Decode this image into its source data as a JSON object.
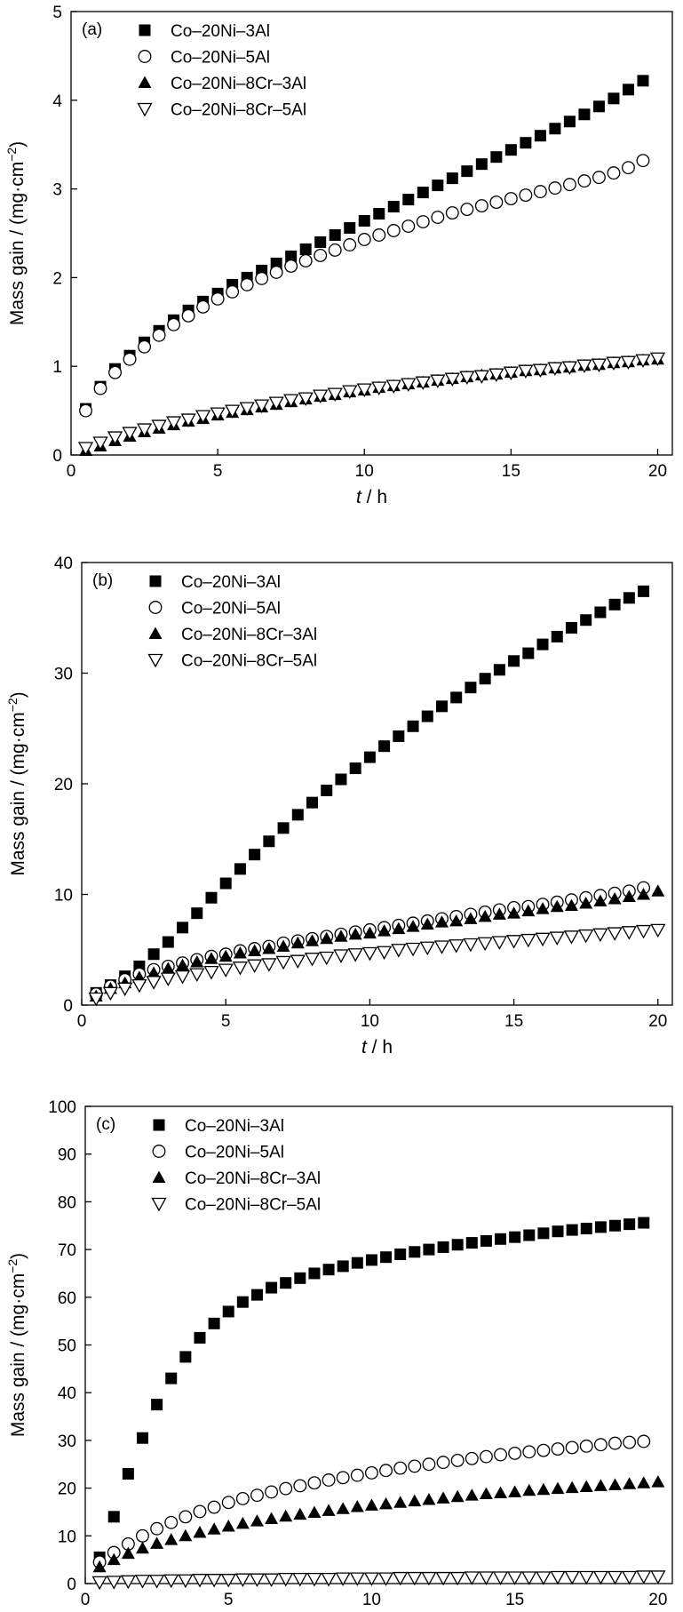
{
  "chart_data": [
    {
      "type": "scatter",
      "panel_label": "(a)",
      "xlabel_italic": "t",
      "xlabel_rest": " / h",
      "ylabel": "Mass gain / (mg·cm",
      "ylabel_sup": "−2",
      "ylabel_close": ")",
      "xlim": [
        0,
        20.5
      ],
      "ylim": [
        0,
        5
      ],
      "xticks": [
        0,
        5,
        10,
        15,
        20
      ],
      "yticks": [
        0,
        1,
        2,
        3,
        4,
        5
      ],
      "legend_position": "top-left",
      "series": [
        {
          "name": "Co–20Ni–3Al",
          "marker": "filled-square",
          "x": [
            0.5,
            1,
            1.5,
            2,
            2.5,
            3,
            3.5,
            4,
            4.5,
            5,
            5.5,
            6,
            6.5,
            7,
            7.5,
            8,
            8.5,
            9,
            9.5,
            10,
            10.5,
            11,
            11.5,
            12,
            12.5,
            13,
            13.5,
            14,
            14.5,
            15,
            15.5,
            16,
            16.5,
            17,
            17.5,
            18,
            18.5,
            19,
            19.5
          ],
          "y": [
            0.52,
            0.77,
            0.97,
            1.12,
            1.27,
            1.4,
            1.52,
            1.63,
            1.73,
            1.82,
            1.92,
            2.0,
            2.08,
            2.16,
            2.24,
            2.32,
            2.4,
            2.48,
            2.56,
            2.64,
            2.72,
            2.8,
            2.88,
            2.96,
            3.04,
            3.12,
            3.2,
            3.28,
            3.36,
            3.44,
            3.52,
            3.6,
            3.68,
            3.76,
            3.84,
            3.93,
            4.02,
            4.12,
            4.22
          ]
        },
        {
          "name": "Co–20Ni–5Al",
          "marker": "open-circle",
          "x": [
            0.5,
            1,
            1.5,
            2,
            2.5,
            3,
            3.5,
            4,
            4.5,
            5,
            5.5,
            6,
            6.5,
            7,
            7.5,
            8,
            8.5,
            9,
            9.5,
            10,
            10.5,
            11,
            11.5,
            12,
            12.5,
            13,
            13.5,
            14,
            14.5,
            15,
            15.5,
            16,
            16.5,
            17,
            17.5,
            18,
            18.5,
            19,
            19.5
          ],
          "y": [
            0.5,
            0.75,
            0.93,
            1.08,
            1.22,
            1.35,
            1.47,
            1.57,
            1.67,
            1.76,
            1.84,
            1.92,
            1.99,
            2.06,
            2.13,
            2.19,
            2.25,
            2.31,
            2.37,
            2.43,
            2.48,
            2.53,
            2.58,
            2.63,
            2.68,
            2.73,
            2.77,
            2.81,
            2.85,
            2.89,
            2.93,
            2.97,
            3.01,
            3.05,
            3.09,
            3.13,
            3.18,
            3.24,
            3.32
          ]
        },
        {
          "name": "Co–20Ni–8Cr–3Al",
          "marker": "filled-triangle-up",
          "x": [
            0.5,
            1,
            1.5,
            2,
            2.5,
            3,
            3.5,
            4,
            4.5,
            5,
            5.5,
            6,
            6.5,
            7,
            7.5,
            8,
            8.5,
            9,
            9.5,
            10,
            10.5,
            11,
            11.5,
            12,
            12.5,
            13,
            13.5,
            14,
            14.5,
            15,
            15.5,
            16,
            16.5,
            17,
            17.5,
            18,
            18.5,
            19,
            19.5,
            20
          ],
          "y": [
            0.05,
            0.1,
            0.16,
            0.21,
            0.26,
            0.3,
            0.34,
            0.38,
            0.41,
            0.45,
            0.48,
            0.51,
            0.54,
            0.57,
            0.6,
            0.63,
            0.66,
            0.68,
            0.71,
            0.73,
            0.76,
            0.78,
            0.8,
            0.82,
            0.84,
            0.86,
            0.88,
            0.9,
            0.91,
            0.93,
            0.95,
            0.96,
            0.98,
            0.99,
            1.01,
            1.02,
            1.04,
            1.05,
            1.07,
            1.08
          ]
        },
        {
          "name": "Co–20Ni–8Cr–5Al",
          "marker": "open-triangle-down",
          "x": [
            0.5,
            1,
            1.5,
            2,
            2.5,
            3,
            3.5,
            4,
            4.5,
            5,
            5.5,
            6,
            6.5,
            7,
            7.5,
            8,
            8.5,
            9,
            9.5,
            10,
            10.5,
            11,
            11.5,
            12,
            12.5,
            13,
            13.5,
            14,
            14.5,
            15,
            15.5,
            16,
            16.5,
            17,
            17.5,
            18,
            18.5,
            19,
            19.5,
            20
          ],
          "y": [
            0.08,
            0.14,
            0.2,
            0.25,
            0.29,
            0.33,
            0.37,
            0.4,
            0.44,
            0.47,
            0.5,
            0.53,
            0.56,
            0.59,
            0.62,
            0.64,
            0.67,
            0.69,
            0.72,
            0.74,
            0.76,
            0.78,
            0.8,
            0.82,
            0.84,
            0.86,
            0.88,
            0.89,
            0.91,
            0.93,
            0.95,
            0.96,
            0.98,
            0.99,
            1.01,
            1.02,
            1.04,
            1.05,
            1.07,
            1.09
          ]
        }
      ]
    },
    {
      "type": "scatter",
      "panel_label": "(b)",
      "xlabel_italic": "t",
      "xlabel_rest": " / h",
      "ylabel": "Mass gain / (mg·cm",
      "ylabel_sup": "−2",
      "ylabel_close": ")",
      "xlim": [
        0,
        20.5
      ],
      "ylim": [
        0,
        40
      ],
      "xticks": [
        0,
        5,
        10,
        15,
        20
      ],
      "yticks": [
        0,
        10,
        20,
        30,
        40
      ],
      "legend_position": "top-left",
      "series": [
        {
          "name": "Co–20Ni–3Al",
          "marker": "filled-square",
          "x": [
            0.5,
            1,
            1.5,
            2,
            2.5,
            3,
            3.5,
            4,
            4.5,
            5,
            5.5,
            6,
            6.5,
            7,
            7.5,
            8,
            8.5,
            9,
            9.5,
            10,
            10.5,
            11,
            11.5,
            12,
            12.5,
            13,
            13.5,
            14,
            14.5,
            15,
            15.5,
            16,
            16.5,
            17,
            17.5,
            18,
            18.5,
            19,
            19.5
          ],
          "y": [
            1.1,
            1.8,
            2.6,
            3.5,
            4.6,
            5.7,
            7.0,
            8.3,
            9.7,
            11.0,
            12.3,
            13.6,
            14.8,
            16.0,
            17.2,
            18.3,
            19.4,
            20.4,
            21.4,
            22.4,
            23.4,
            24.3,
            25.2,
            26.1,
            27.0,
            27.8,
            28.7,
            29.5,
            30.3,
            31.1,
            31.8,
            32.6,
            33.3,
            34.1,
            34.8,
            35.5,
            36.2,
            36.8,
            37.4
          ]
        },
        {
          "name": "Co–20Ni–5Al",
          "marker": "open-circle",
          "x": [
            0.5,
            1,
            1.5,
            2,
            2.5,
            3,
            3.5,
            4,
            4.5,
            5,
            5.5,
            6,
            6.5,
            7,
            7.5,
            8,
            8.5,
            9,
            9.5,
            10,
            10.5,
            11,
            11.5,
            12,
            12.5,
            13,
            13.5,
            14,
            14.5,
            15,
            15.5,
            16,
            16.5,
            17,
            17.5,
            18,
            18.5,
            19,
            19.5
          ],
          "y": [
            1.0,
            1.7,
            2.3,
            2.8,
            3.2,
            3.5,
            3.8,
            4.1,
            4.4,
            4.6,
            4.9,
            5.1,
            5.3,
            5.6,
            5.8,
            6.0,
            6.2,
            6.4,
            6.6,
            6.8,
            7.0,
            7.2,
            7.4,
            7.6,
            7.8,
            8.0,
            8.2,
            8.4,
            8.6,
            8.8,
            8.9,
            9.1,
            9.3,
            9.5,
            9.7,
            9.9,
            10.1,
            10.3,
            10.6
          ]
        },
        {
          "name": "Co–20Ni–8Cr–3Al",
          "marker": "filled-triangle-up",
          "x": [
            0.5,
            1,
            1.5,
            2,
            2.5,
            3,
            3.5,
            4,
            4.5,
            5,
            5.5,
            6,
            6.5,
            7,
            7.5,
            8,
            8.5,
            9,
            9.5,
            10,
            10.5,
            11,
            11.5,
            12,
            12.5,
            13,
            13.5,
            14,
            14.5,
            15,
            15.5,
            16,
            16.5,
            17,
            17.5,
            18,
            18.5,
            19,
            19.5,
            20
          ],
          "y": [
            0.8,
            1.5,
            2.0,
            2.5,
            2.9,
            3.3,
            3.6,
            3.9,
            4.2,
            4.4,
            4.7,
            4.9,
            5.1,
            5.3,
            5.6,
            5.8,
            6.0,
            6.2,
            6.4,
            6.5,
            6.7,
            6.9,
            7.1,
            7.3,
            7.5,
            7.6,
            7.8,
            8.0,
            8.2,
            8.3,
            8.5,
            8.7,
            8.9,
            9.0,
            9.2,
            9.4,
            9.6,
            9.8,
            10.0,
            10.3
          ]
        },
        {
          "name": "Co–20Ni–8Cr–5Al",
          "marker": "open-triangle-down",
          "x": [
            0.5,
            1,
            1.5,
            2,
            2.5,
            3,
            3.5,
            4,
            4.5,
            5,
            5.5,
            6,
            6.5,
            7,
            7.5,
            8,
            8.5,
            9,
            9.5,
            10,
            10.5,
            11,
            11.5,
            12,
            12.5,
            13,
            13.5,
            14,
            14.5,
            15,
            15.5,
            16,
            16.5,
            17,
            17.5,
            18,
            18.5,
            19,
            19.5,
            20
          ],
          "y": [
            0.6,
            1.1,
            1.5,
            1.8,
            2.1,
            2.4,
            2.6,
            2.8,
            3.0,
            3.2,
            3.4,
            3.6,
            3.7,
            3.9,
            4.0,
            4.2,
            4.3,
            4.5,
            4.6,
            4.7,
            4.8,
            5.0,
            5.1,
            5.2,
            5.3,
            5.4,
            5.5,
            5.6,
            5.7,
            5.8,
            5.9,
            6.0,
            6.1,
            6.2,
            6.3,
            6.4,
            6.5,
            6.6,
            6.7,
            6.8
          ]
        }
      ]
    },
    {
      "type": "scatter",
      "panel_label": "(c)",
      "xlabel_italic": "t",
      "xlabel_rest": " / h",
      "ylabel": "Mass gain / (mg·cm",
      "ylabel_sup": "−2",
      "ylabel_close": ")",
      "xlim": [
        0,
        20.5
      ],
      "ylim": [
        0,
        100
      ],
      "xticks": [
        0,
        5,
        10,
        15,
        20
      ],
      "yticks": [
        0,
        10,
        20,
        30,
        40,
        50,
        60,
        70,
        80,
        90,
        100
      ],
      "legend_position": "top-left",
      "series": [
        {
          "name": "Co–20Ni–3Al",
          "marker": "filled-square",
          "x": [
            0.5,
            1,
            1.5,
            2,
            2.5,
            3,
            3.5,
            4,
            4.5,
            5,
            5.5,
            6,
            6.5,
            7,
            7.5,
            8,
            8.5,
            9,
            9.5,
            10,
            10.5,
            11,
            11.5,
            12,
            12.5,
            13,
            13.5,
            14,
            14.5,
            15,
            15.5,
            16,
            16.5,
            17,
            17.5,
            18,
            18.5,
            19,
            19.5
          ],
          "y": [
            5.5,
            14,
            23,
            30.5,
            37.5,
            43,
            47.5,
            51.5,
            54.5,
            57,
            59,
            60.5,
            62,
            63,
            64,
            65,
            65.8,
            66.5,
            67.2,
            67.8,
            68.4,
            69,
            69.5,
            70,
            70.5,
            71,
            71.4,
            71.8,
            72.2,
            72.6,
            73,
            73.4,
            73.8,
            74.1,
            74.4,
            74.7,
            75,
            75.3,
            75.6
          ]
        },
        {
          "name": "Co–20Ni–5Al",
          "marker": "open-circle",
          "x": [
            0.5,
            1,
            1.5,
            2,
            2.5,
            3,
            3.5,
            4,
            4.5,
            5,
            5.5,
            6,
            6.5,
            7,
            7.5,
            8,
            8.5,
            9,
            9.5,
            10,
            10.5,
            11,
            11.5,
            12,
            12.5,
            13,
            13.5,
            14,
            14.5,
            15,
            15.5,
            16,
            16.5,
            17,
            17.5,
            18,
            18.5,
            19,
            19.5
          ],
          "y": [
            4.5,
            6.5,
            8.3,
            10,
            11.5,
            12.8,
            14,
            15.1,
            16,
            17,
            17.8,
            18.5,
            19.2,
            19.9,
            20.5,
            21.1,
            21.7,
            22.2,
            22.7,
            23.2,
            23.7,
            24.2,
            24.6,
            25,
            25.4,
            25.8,
            26.2,
            26.6,
            27,
            27.3,
            27.6,
            27.9,
            28.2,
            28.5,
            28.8,
            29.1,
            29.4,
            29.6,
            29.8
          ]
        },
        {
          "name": "Co–20Ni–8Cr–3Al",
          "marker": "filled-triangle-up",
          "x": [
            0.5,
            1,
            1.5,
            2,
            2.5,
            3,
            3.5,
            4,
            4.5,
            5,
            5.5,
            6,
            6.5,
            7,
            7.5,
            8,
            8.5,
            9,
            9.5,
            10,
            10.5,
            11,
            11.5,
            12,
            12.5,
            13,
            13.5,
            14,
            14.5,
            15,
            15.5,
            16,
            16.5,
            17,
            17.5,
            18,
            18.5,
            19,
            19.5,
            20
          ],
          "y": [
            3.5,
            5,
            6.3,
            7.4,
            8.4,
            9.2,
            10,
            10.7,
            11.4,
            12,
            12.6,
            13.1,
            13.6,
            14.1,
            14.5,
            14.9,
            15.3,
            15.7,
            16.1,
            16.4,
            16.7,
            17,
            17.3,
            17.6,
            17.9,
            18.2,
            18.5,
            18.8,
            19,
            19.2,
            19.5,
            19.7,
            19.9,
            20.1,
            20.3,
            20.5,
            20.7,
            20.9,
            21.1,
            21.3
          ]
        },
        {
          "name": "Co–20Ni–8Cr–5Al",
          "marker": "open-triangle-down",
          "x": [
            0.5,
            1,
            1.5,
            2,
            2.5,
            3,
            3.5,
            4,
            4.5,
            5,
            5.5,
            6,
            6.5,
            7,
            7.5,
            8,
            8.5,
            9,
            9.5,
            10,
            10.5,
            11,
            11.5,
            12,
            12.5,
            13,
            13.5,
            14,
            14.5,
            15,
            15.5,
            16,
            16.5,
            17,
            17.5,
            18,
            18.5,
            19,
            19.5,
            20
          ],
          "y": [
            0.3,
            0.4,
            0.5,
            0.6,
            0.6,
            0.7,
            0.7,
            0.8,
            0.8,
            0.8,
            0.9,
            0.9,
            0.9,
            1.0,
            1.0,
            1.0,
            1.0,
            1.1,
            1.1,
            1.1,
            1.1,
            1.2,
            1.2,
            1.2,
            1.2,
            1.2,
            1.3,
            1.3,
            1.3,
            1.3,
            1.3,
            1.3,
            1.4,
            1.4,
            1.4,
            1.4,
            1.4,
            1.4,
            1.5,
            1.5
          ]
        }
      ]
    }
  ]
}
